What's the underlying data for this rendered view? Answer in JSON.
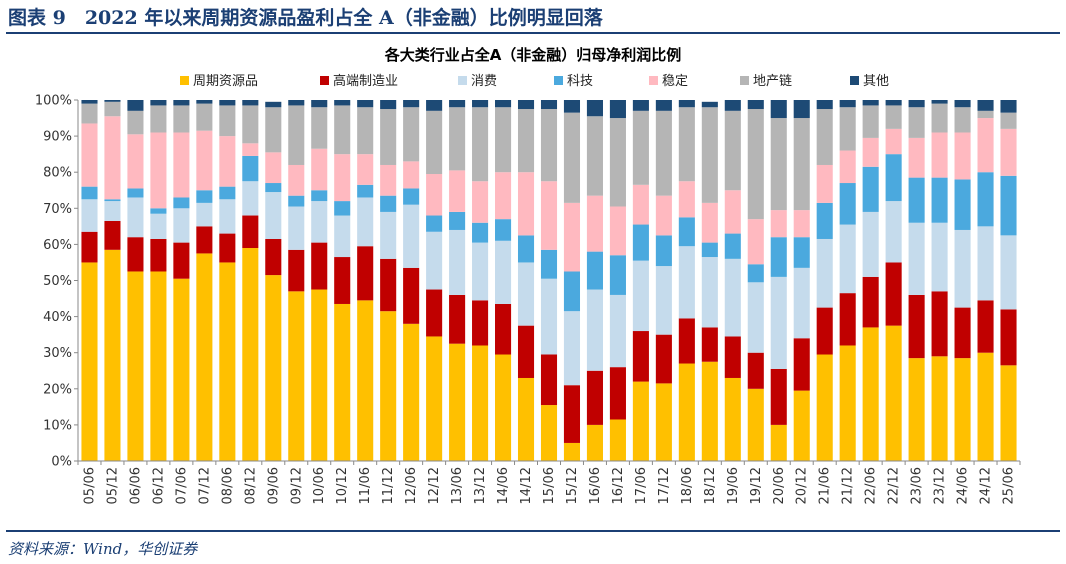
{
  "figure": {
    "title": "图表 9　2022 年以来周期资源品盈利占全 A（非金融）比例明显回落",
    "source": "资料来源：Wind，华创证券"
  },
  "chart_data": {
    "type": "bar",
    "stacked": true,
    "title": "各大类行业占全A（非金融）归母净利润比例",
    "xlabel": "",
    "ylabel": "",
    "ylim": [
      0,
      100
    ],
    "y_unit": "%",
    "yticks": [
      "0%",
      "10%",
      "20%",
      "30%",
      "40%",
      "50%",
      "60%",
      "70%",
      "80%",
      "90%",
      "100%"
    ],
    "legend_position": "top",
    "grid": false,
    "categories": [
      "05/06",
      "05/12",
      "06/06",
      "06/12",
      "07/06",
      "07/12",
      "08/06",
      "08/12",
      "09/06",
      "09/12",
      "10/06",
      "10/12",
      "11/06",
      "11/12",
      "12/06",
      "12/12",
      "13/06",
      "13/12",
      "14/06",
      "14/12",
      "15/06",
      "15/12",
      "16/06",
      "16/12",
      "17/06",
      "17/12",
      "18/06",
      "18/12",
      "19/06",
      "19/12",
      "20/06",
      "20/12",
      "21/06",
      "21/12",
      "22/06",
      "22/12",
      "23/06",
      "23/12",
      "24/06",
      "24/12",
      "25/06"
    ],
    "series": [
      {
        "name": "周期资源品",
        "color": "#ffc000",
        "values": [
          55,
          58.5,
          52.5,
          52.5,
          50.5,
          57.5,
          55,
          59,
          51.5,
          47,
          47.5,
          43.5,
          44.5,
          41.5,
          38,
          34.5,
          32.5,
          32,
          29.5,
          23,
          15.5,
          5,
          10,
          11.5,
          22,
          21.5,
          27,
          27.5,
          23,
          20,
          10,
          19.5,
          29.5,
          32,
          37,
          37.5,
          28.5,
          29,
          28.5,
          30,
          26.5
        ]
      },
      {
        "name": "高端制造业",
        "color": "#c00000",
        "values": [
          8.5,
          8,
          9.5,
          9,
          10,
          7.5,
          8,
          9,
          10,
          11.5,
          13,
          13,
          15,
          14.5,
          15.5,
          13,
          13.5,
          12.5,
          14,
          14.5,
          14,
          16,
          15,
          14.5,
          14,
          13.5,
          12.5,
          9.5,
          11.5,
          10,
          15.5,
          14.5,
          13,
          14.5,
          14,
          17.5,
          17.5,
          18,
          14,
          14.5,
          15.5
        ]
      },
      {
        "name": "消费",
        "color": "#c5dbec",
        "values": [
          9,
          5.5,
          11,
          7,
          9.5,
          6.5,
          9.5,
          9.5,
          13,
          12,
          11.5,
          11.5,
          13.5,
          13,
          17.5,
          16,
          18,
          16,
          17.5,
          17.5,
          21,
          20.5,
          22.5,
          20,
          19.5,
          19,
          20,
          19.5,
          21.5,
          19.5,
          25.5,
          19.5,
          19,
          19,
          18,
          17,
          20,
          19,
          21.5,
          20.5,
          20.5
        ]
      },
      {
        "name": "科技",
        "color": "#4ba9de",
        "values": [
          3.5,
          0.5,
          2.5,
          1.5,
          3,
          3.5,
          3.5,
          7,
          2.5,
          3,
          3,
          4,
          3.5,
          4.5,
          4.5,
          4.5,
          5,
          5.5,
          6,
          7.5,
          8,
          11,
          10.5,
          11,
          10,
          8.5,
          8,
          4,
          7,
          5,
          11,
          8.5,
          10,
          11.5,
          12.5,
          13,
          12.5,
          12.5,
          14,
          15,
          16.5
        ]
      },
      {
        "name": "稳定",
        "color": "#ffb9c0",
        "values": [
          17.5,
          23,
          15,
          21,
          18,
          16.5,
          14,
          3.5,
          8.5,
          8.5,
          11.5,
          13,
          8.5,
          8.5,
          7.5,
          11.5,
          11.5,
          11.5,
          13,
          17.5,
          19,
          19,
          15.5,
          13.5,
          11,
          11,
          10,
          11,
          12,
          12.5,
          7.5,
          7.5,
          10.5,
          9,
          8,
          7,
          11,
          12.5,
          13,
          15,
          13
        ]
      },
      {
        "name": "地产链",
        "color": "#b5b5b5",
        "values": [
          5.5,
          4,
          6.5,
          7.5,
          7.5,
          7.5,
          8.5,
          10.5,
          12.5,
          16.5,
          11.5,
          13.5,
          13,
          15.5,
          15,
          17.5,
          17.5,
          20.5,
          18,
          17.5,
          20,
          25,
          22,
          24.5,
          20.5,
          23.5,
          20.5,
          26.5,
          22,
          30.5,
          25.5,
          25.5,
          15.5,
          12,
          9,
          6.5,
          8.5,
          8,
          7,
          2,
          4.5
        ]
      },
      {
        "name": "其他",
        "color": "#1d4a75",
        "values": [
          1,
          0.5,
          3,
          1.5,
          1.5,
          1,
          1.5,
          1.5,
          1.5,
          1.5,
          2,
          1.5,
          2,
          2.5,
          2,
          3,
          2,
          2,
          2,
          2.5,
          2.5,
          3.5,
          4.5,
          5,
          3,
          3,
          2,
          1.5,
          3,
          2.5,
          5,
          5,
          2.5,
          2,
          1.5,
          1.5,
          2,
          1,
          2,
          3,
          3.5
        ]
      }
    ]
  }
}
